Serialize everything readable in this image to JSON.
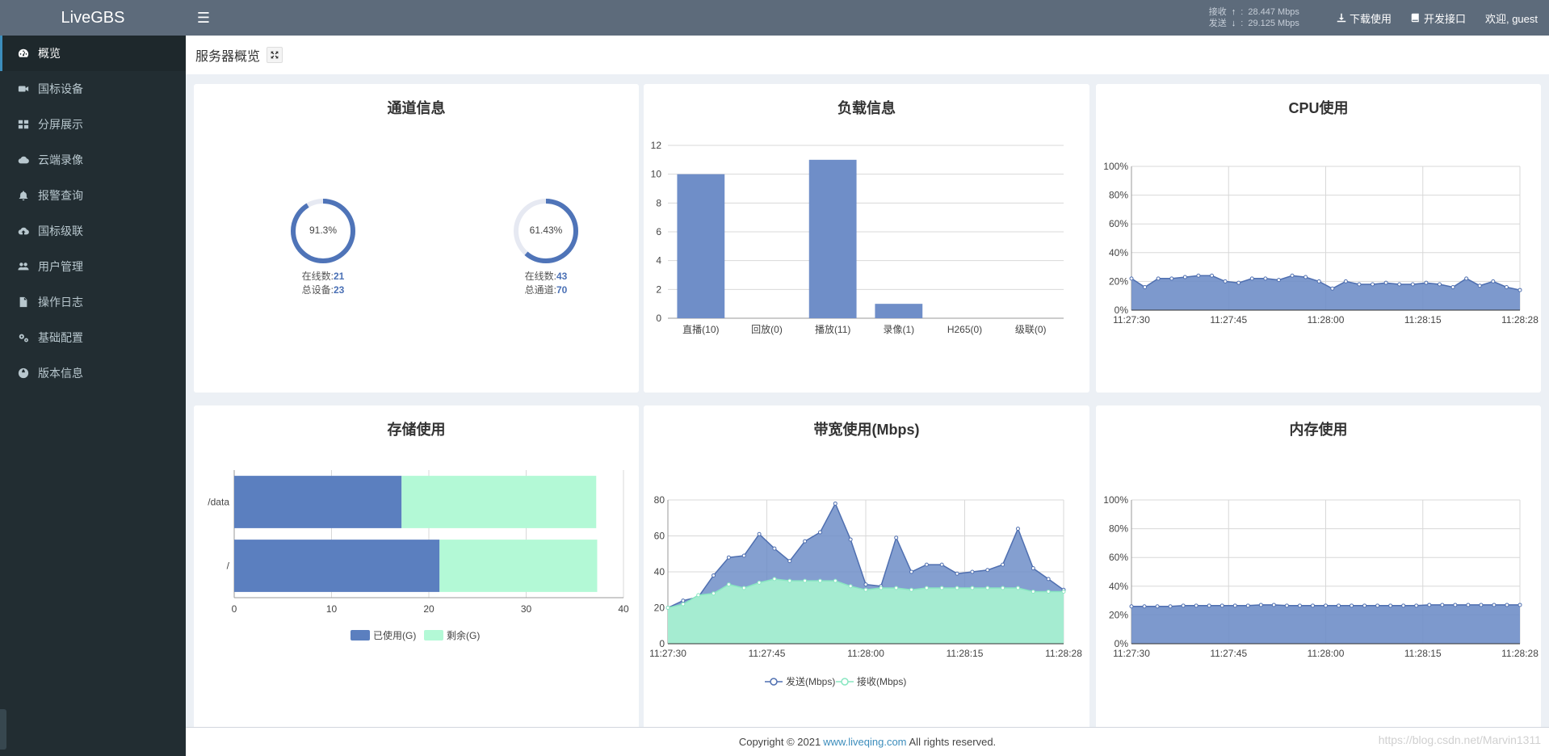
{
  "app": {
    "brand": "LiveGBS"
  },
  "sidebar": {
    "items": [
      {
        "label": "概览",
        "icon": "dashboard-icon",
        "active": true
      },
      {
        "label": "国标设备",
        "icon": "video-camera-icon"
      },
      {
        "label": "分屏展示",
        "icon": "grid-icon"
      },
      {
        "label": "云端录像",
        "icon": "cloud-icon"
      },
      {
        "label": "报警查询",
        "icon": "bell-icon"
      },
      {
        "label": "国标级联",
        "icon": "cloud-upload-icon"
      },
      {
        "label": "用户管理",
        "icon": "users-icon"
      },
      {
        "label": "操作日志",
        "icon": "file-icon"
      },
      {
        "label": "基础配置",
        "icon": "gears-icon"
      },
      {
        "label": "版本信息",
        "icon": "globe-icon"
      }
    ]
  },
  "header": {
    "recv_label": "接收",
    "recv_value": "28.447 Mbps",
    "send_label": "发送",
    "send_value": "29.125 Mbps",
    "download_label": "下载使用",
    "api_label": "开发接口",
    "welcome": "欢迎, guest"
  },
  "page": {
    "title": "服务器概览"
  },
  "channel_panel": {
    "title": "通道信息",
    "rings": [
      {
        "percent_label": "91.3%",
        "fraction": 0.913,
        "line1_label": "在线数:",
        "line1_value": "21",
        "line2_label": "总设备:",
        "line2_value": "23"
      },
      {
        "percent_label": "61.43%",
        "fraction": 0.6143,
        "line1_label": "在线数:",
        "line1_value": "43",
        "line2_label": "总通道:",
        "line2_value": "70"
      }
    ]
  },
  "load_panel": {
    "title": "负载信息"
  },
  "cpu_panel": {
    "title": "CPU使用"
  },
  "storage_panel": {
    "title": "存储使用"
  },
  "bandwidth_panel": {
    "title": "带宽使用(Mbps)"
  },
  "memory_panel": {
    "title": "内存使用"
  },
  "colors": {
    "primary": "#5b7fbf",
    "primary_fill": "#6f8ec8",
    "mint": "#b3f9d6",
    "mint_fill": "#a5ecd1"
  },
  "chart_data": [
    {
      "type": "bar",
      "title": "负载信息",
      "categories": [
        "直播(10)",
        "回放(0)",
        "播放(11)",
        "录像(1)",
        "H265(0)",
        "级联(0)"
      ],
      "values": [
        10,
        0,
        11,
        1,
        0,
        0
      ],
      "ylim": [
        0,
        12
      ],
      "yticks": [
        0,
        2,
        4,
        6,
        8,
        10,
        12
      ],
      "grid": true
    },
    {
      "type": "area",
      "title": "CPU使用",
      "xticks": [
        "11:27:30",
        "11:27:45",
        "11:28:00",
        "11:28:15",
        "11:28:28"
      ],
      "yticks": [
        "0%",
        "20%",
        "40%",
        "60%",
        "80%",
        "100%"
      ],
      "ylim": [
        0,
        100
      ],
      "values": [
        22,
        16,
        22,
        22,
        23,
        24,
        24,
        20,
        19,
        22,
        22,
        21,
        24,
        23,
        20,
        15,
        20,
        18,
        18,
        19,
        18,
        18,
        19,
        18,
        16,
        22,
        17,
        20,
        16,
        14
      ],
      "grid": true
    },
    {
      "type": "bar",
      "orientation": "horizontal",
      "stacked": true,
      "title": "存储使用",
      "categories": [
        "/data",
        "/"
      ],
      "series": [
        {
          "name": "已使用(G)",
          "values": [
            17.2,
            21.1
          ]
        },
        {
          "name": "剩余(G)",
          "values": [
            20.0,
            16.2
          ]
        }
      ],
      "xlim": [
        0,
        40
      ],
      "xticks": [
        0,
        10,
        20,
        30,
        40
      ],
      "legend": "bottom"
    },
    {
      "type": "area",
      "title": "带宽使用(Mbps)",
      "xticks": [
        "11:27:30",
        "11:27:45",
        "11:28:00",
        "11:28:15",
        "11:28:28"
      ],
      "yticks": [
        0,
        20,
        40,
        60,
        80
      ],
      "ylim": [
        0,
        80
      ],
      "series": [
        {
          "name": "发送(Mbps)",
          "values": [
            20,
            24,
            26,
            38,
            48,
            49,
            61,
            53,
            46,
            57,
            62,
            78,
            58,
            33,
            32,
            59,
            40,
            44,
            44,
            39,
            40,
            41,
            44,
            64,
            42,
            36,
            30
          ]
        },
        {
          "name": "接收(Mbps)",
          "values": [
            20,
            22,
            27,
            28,
            33,
            31,
            34,
            36,
            35,
            35,
            35,
            35,
            32,
            30,
            31,
            31,
            30,
            31,
            31,
            31,
            31,
            31,
            31,
            31,
            29,
            29,
            29
          ]
        }
      ],
      "legend": "bottom",
      "grid": true
    },
    {
      "type": "area",
      "title": "内存使用",
      "xticks": [
        "11:27:30",
        "11:27:45",
        "11:28:00",
        "11:28:15",
        "11:28:28"
      ],
      "yticks": [
        "0%",
        "20%",
        "40%",
        "60%",
        "80%",
        "100%"
      ],
      "ylim": [
        0,
        100
      ],
      "values": [
        26,
        26,
        26,
        26,
        26.5,
        26.5,
        26.5,
        26.5,
        26.5,
        26.5,
        27,
        27,
        26.5,
        26.5,
        26.5,
        26.5,
        26.5,
        26.5,
        26.5,
        26.5,
        26.5,
        26.5,
        26.5,
        27,
        27,
        27,
        27,
        27,
        27,
        27,
        27
      ],
      "grid": true
    }
  ],
  "footer": {
    "copyright": "Copyright © 2021",
    "link": "www.liveqing.com",
    "rights": "All rights reserved."
  },
  "watermark": "https://blog.csdn.net/Marvin1311"
}
